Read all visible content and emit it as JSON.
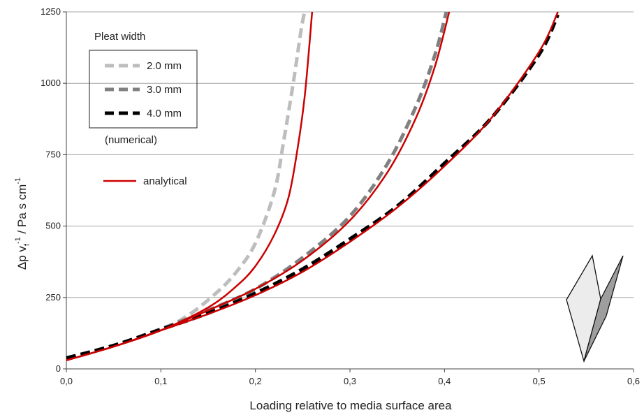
{
  "chart_data": {
    "type": "line",
    "xlabel": "Loading relative to media surface area",
    "ylabel_parts": [
      "Δp v",
      "f",
      "-1",
      " / Pa s cm",
      "-1"
    ],
    "xlim": [
      0,
      0.6
    ],
    "ylim": [
      0,
      1250
    ],
    "x_ticks": [
      "0,0",
      "0,1",
      "0,2",
      "0,3",
      "0,4",
      "0,5",
      "0,6"
    ],
    "y_ticks": [
      "0",
      "250",
      "500",
      "750",
      "1000",
      "1250"
    ],
    "grid": "horizontal",
    "legend": {
      "title": "Pleat width",
      "entries": [
        "2.0 mm",
        "3.0 mm",
        "4.0 mm"
      ],
      "note": "(numerical)",
      "analytical_label": "analytical"
    },
    "series": [
      {
        "name": "2.0 mm",
        "style": "dashed",
        "color": "#bdbdbd",
        "kind": "numerical",
        "points": [
          [
            0,
            38
          ],
          [
            0.05,
            82
          ],
          [
            0.1,
            138
          ],
          [
            0.13,
            190
          ],
          [
            0.16,
            270
          ],
          [
            0.18,
            340
          ],
          [
            0.2,
            440
          ],
          [
            0.22,
            620
          ],
          [
            0.23,
            800
          ],
          [
            0.24,
            1000
          ],
          [
            0.248,
            1180
          ],
          [
            0.252,
            1250
          ]
        ]
      },
      {
        "name": "3.0 mm",
        "style": "dashed",
        "color": "#808080",
        "kind": "numerical",
        "points": [
          [
            0,
            38
          ],
          [
            0.05,
            82
          ],
          [
            0.1,
            140
          ],
          [
            0.15,
            205
          ],
          [
            0.2,
            280
          ],
          [
            0.25,
            390
          ],
          [
            0.3,
            535
          ],
          [
            0.34,
            720
          ],
          [
            0.37,
            920
          ],
          [
            0.39,
            1100
          ],
          [
            0.402,
            1250
          ]
        ]
      },
      {
        "name": "4.0 mm",
        "style": "dashed",
        "color": "#000000",
        "kind": "numerical",
        "points": [
          [
            0,
            38
          ],
          [
            0.05,
            82
          ],
          [
            0.1,
            138
          ],
          [
            0.15,
            195
          ],
          [
            0.2,
            265
          ],
          [
            0.25,
            350
          ],
          [
            0.3,
            455
          ],
          [
            0.35,
            570
          ],
          [
            0.4,
            720
          ],
          [
            0.45,
            880
          ],
          [
            0.5,
            1100
          ],
          [
            0.52,
            1240
          ]
        ]
      },
      {
        "name": "2.0 mm",
        "style": "solid",
        "color": "#cc0000",
        "kind": "analytical",
        "points": [
          [
            0,
            30
          ],
          [
            0.05,
            78
          ],
          [
            0.1,
            135
          ],
          [
            0.15,
            215
          ],
          [
            0.18,
            290
          ],
          [
            0.2,
            360
          ],
          [
            0.22,
            470
          ],
          [
            0.235,
            600
          ],
          [
            0.245,
            780
          ],
          [
            0.252,
            950
          ],
          [
            0.257,
            1130
          ],
          [
            0.26,
            1250
          ]
        ]
      },
      {
        "name": "3.0 mm",
        "style": "solid",
        "color": "#cc0000",
        "kind": "analytical",
        "points": [
          [
            0,
            30
          ],
          [
            0.05,
            78
          ],
          [
            0.1,
            135
          ],
          [
            0.15,
            205
          ],
          [
            0.2,
            280
          ],
          [
            0.25,
            380
          ],
          [
            0.3,
            520
          ],
          [
            0.34,
            690
          ],
          [
            0.37,
            880
          ],
          [
            0.39,
            1060
          ],
          [
            0.405,
            1250
          ]
        ]
      },
      {
        "name": "4.0 mm",
        "style": "solid",
        "color": "#cc0000",
        "kind": "analytical",
        "points": [
          [
            0,
            30
          ],
          [
            0.05,
            78
          ],
          [
            0.1,
            135
          ],
          [
            0.15,
            192
          ],
          [
            0.2,
            258
          ],
          [
            0.25,
            340
          ],
          [
            0.3,
            445
          ],
          [
            0.35,
            565
          ],
          [
            0.4,
            710
          ],
          [
            0.45,
            880
          ],
          [
            0.5,
            1110
          ],
          [
            0.52,
            1250
          ]
        ]
      }
    ]
  }
}
